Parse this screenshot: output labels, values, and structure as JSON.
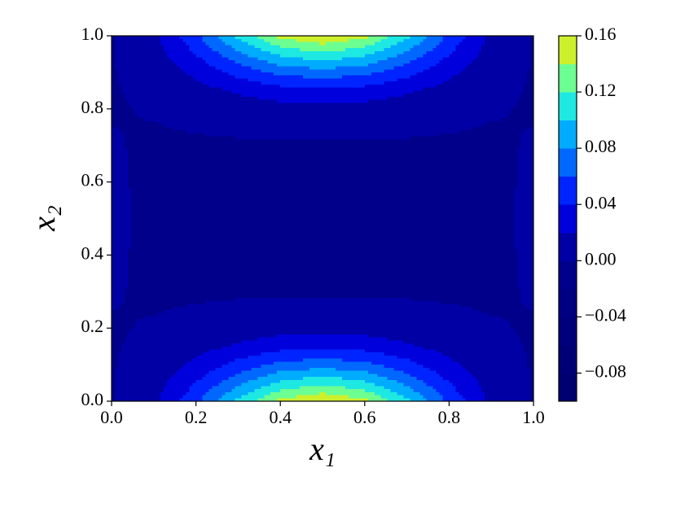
{
  "chart_data": {
    "type": "contour",
    "xlabel": "x₁",
    "ylabel": "x₂",
    "xlim": [
      0,
      1
    ],
    "ylim": [
      0,
      1
    ],
    "xticks": [
      {
        "value": 0,
        "label": "0.0"
      },
      0.2,
      0.4,
      0.6,
      0.8,
      {
        "value": 1,
        "label": "1.0"
      }
    ],
    "yticks": [
      {
        "value": 0,
        "label": "0.0"
      },
      0.2,
      0.4,
      0.6,
      0.8,
      {
        "value": 1,
        "label": "1.0"
      }
    ],
    "x": [
      0,
      0.1,
      0.2,
      0.3,
      0.4,
      0.5,
      0.6,
      0.7,
      0.8,
      0.9,
      1
    ],
    "y": [
      0,
      0.05,
      0.1,
      0.15,
      0.2,
      0.3,
      0.4,
      0.5,
      0.6,
      0.7,
      0.8,
      0.85,
      0.9,
      0.95,
      1
    ],
    "z": [
      [
        -0.001,
        0.015,
        0.055,
        0.105,
        0.145,
        0.16,
        0.145,
        0.105,
        0.055,
        0.015,
        -0.001
      ],
      [
        -0.001,
        0.011,
        0.04,
        0.075,
        0.104,
        0.115,
        0.104,
        0.075,
        0.04,
        0.011,
        -0.001
      ],
      [
        -0.001,
        0.007,
        0.025,
        0.047,
        0.065,
        0.072,
        0.065,
        0.047,
        0.025,
        0.007,
        -0.001
      ],
      [
        -0.001,
        0.003,
        0.012,
        0.023,
        0.032,
        0.035,
        0.032,
        0.023,
        0.012,
        0.003,
        -0.001
      ],
      [
        -0.001,
        0.001,
        0.004,
        0.008,
        0.012,
        0.013,
        0.012,
        0.008,
        0.004,
        0.001,
        -0.001
      ],
      [
        0.001,
        -0.002,
        -0.002,
        -0.002,
        -0.002,
        -0.002,
        -0.002,
        -0.002,
        -0.002,
        -0.002,
        0.001
      ],
      [
        0.002,
        -0.003,
        -0.004,
        -0.004,
        -0.004,
        -0.004,
        -0.004,
        -0.004,
        -0.004,
        -0.003,
        0.002
      ],
      [
        0.003,
        -0.003,
        -0.005,
        -0.006,
        -0.006,
        -0.006,
        -0.006,
        -0.006,
        -0.005,
        -0.003,
        0.003
      ],
      [
        0.002,
        -0.003,
        -0.004,
        -0.004,
        -0.004,
        -0.004,
        -0.004,
        -0.004,
        -0.004,
        -0.003,
        0.002
      ],
      [
        0.001,
        -0.002,
        -0.002,
        -0.002,
        -0.002,
        -0.002,
        -0.002,
        -0.002,
        -0.002,
        -0.002,
        0.001
      ],
      [
        -0.001,
        0.001,
        0.004,
        0.008,
        0.012,
        0.013,
        0.012,
        0.008,
        0.004,
        0.001,
        -0.001
      ],
      [
        -0.001,
        0.003,
        0.012,
        0.023,
        0.032,
        0.035,
        0.032,
        0.023,
        0.012,
        0.003,
        -0.001
      ],
      [
        -0.001,
        0.007,
        0.025,
        0.047,
        0.065,
        0.072,
        0.065,
        0.047,
        0.025,
        0.007,
        -0.001
      ],
      [
        -0.001,
        0.011,
        0.04,
        0.075,
        0.104,
        0.115,
        0.104,
        0.075,
        0.04,
        0.011,
        -0.001
      ],
      [
        -0.001,
        0.015,
        0.055,
        0.105,
        0.145,
        0.16,
        0.145,
        0.105,
        0.055,
        0.015,
        -0.001
      ]
    ],
    "levels": [
      -0.1,
      -0.08,
      -0.06,
      -0.04,
      -0.02,
      0,
      0.02,
      0.04,
      0.06,
      0.08,
      0.1,
      0.12,
      0.14,
      0.16
    ],
    "colors": [
      "#000070",
      "#000076",
      "#00007c",
      "#000082",
      "#00008a",
      "#0000a4",
      "#0000dc",
      "#0024ff",
      "#0068ff",
      "#00acff",
      "#1ee8e2",
      "#6cff92",
      "#ccf02c"
    ],
    "cbar_ticks": [
      {
        "value": -0.08,
        "label": "−0.08"
      },
      {
        "value": -0.04,
        "label": "−0.04"
      },
      {
        "value": 0,
        "label": "0.00"
      },
      0.04,
      0.08,
      0.12,
      0.16
    ]
  }
}
